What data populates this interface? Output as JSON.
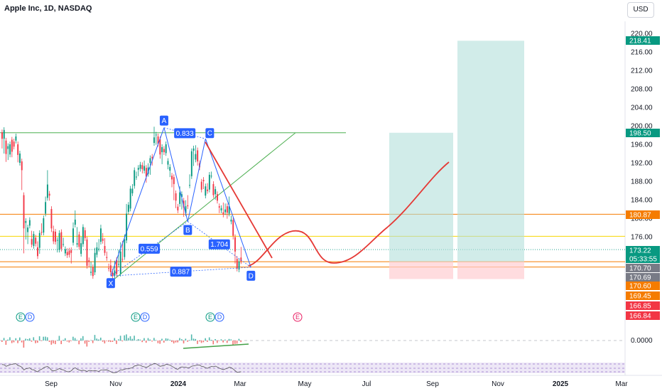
{
  "header": {
    "title": "Apple Inc, 1D, NASDAQ",
    "currency": "USD"
  },
  "chart_data": {
    "type": "candlestick",
    "symbol": "Apple Inc",
    "interval": "1D",
    "exchange": "NASDAQ",
    "ylim": [
      163.0,
      222.5
    ],
    "price_ticks": [
      "220.00",
      "216.00",
      "212.00",
      "208.00",
      "204.00",
      "200.00",
      "196.00",
      "192.00",
      "188.00",
      "184.00",
      "180.00",
      "176.00"
    ],
    "time_axis": [
      "Sep",
      "Nov",
      "2024",
      "Mar",
      "May",
      "Jul",
      "Sep",
      "Nov",
      "2025",
      "Mar"
    ],
    "candles": [
      [
        198.6,
        197.2,
        195.7
      ],
      [
        197.2,
        199.1,
        194.6
      ],
      [
        196.8,
        193.9,
        192.8
      ],
      [
        195.0,
        195.6,
        193.2
      ],
      [
        193.8,
        196.0,
        195.6
      ],
      [
        197.0,
        194.4,
        193.8
      ],
      [
        196.6,
        195.5,
        195.8
      ],
      [
        196.8,
        197.7,
        197.5
      ],
      [
        196.0,
        193.7,
        192.7
      ],
      [
        192.0,
        194.0,
        193.0
      ],
      [
        192.3,
        190.4,
        186.7
      ],
      [
        185.0,
        177.8,
        173.0
      ],
      [
        179.0,
        179.4,
        176.0
      ],
      [
        177.0,
        178.0,
        175.0
      ],
      [
        178.4,
        179.6,
        178.8
      ],
      [
        175.5,
        174.3,
        176.7
      ],
      [
        174.0,
        176.6,
        176.1
      ],
      [
        175.8,
        174.5,
        175.3
      ],
      [
        173.7,
        171.8,
        174.4
      ],
      [
        173.6,
        176.8,
        172.9
      ],
      [
        177.0,
        176.9,
        178.3
      ],
      [
        176.9,
        180.0,
        178.9
      ],
      [
        181.0,
        183.5,
        184.1
      ],
      [
        184.4,
        187.3,
        189.8
      ],
      [
        185.3,
        184.9,
        184.4
      ],
      [
        182.0,
        177.8,
        177.6
      ],
      [
        177.2,
        175.0,
        177.8
      ],
      [
        177.1,
        174.9,
        175.6
      ],
      [
        175.2,
        175.3,
        173.2
      ],
      [
        173.2,
        176.8,
        174.3
      ],
      [
        177.0,
        173.4,
        174.4
      ],
      [
        174.4,
        174.4,
        175.2
      ],
      [
        172.4,
        173.3,
        172.6
      ],
      [
        172.7,
        172.0,
        172.9
      ],
      [
        173.0,
        172.1,
        172.9
      ],
      [
        173.1,
        172.5,
        170.8
      ],
      [
        174.7,
        177.8,
        178.5
      ],
      [
        178.6,
        179.7,
        181.1
      ],
      [
        174.3,
        174.6,
        177.5
      ],
      [
        176.5,
        173.8,
        173.9
      ],
      [
        172.3,
        174.6,
        175.4
      ],
      [
        174.4,
        178.1,
        177.2
      ],
      [
        177.4,
        175.7,
        177.2
      ],
      [
        175.4,
        169.7,
        171.9
      ],
      [
        170.9,
        170.6,
        170.0
      ],
      [
        168.2,
        168.4,
        170.0
      ],
      [
        169.4,
        167.5,
        169.2
      ],
      [
        168.3,
        172.5,
        173.0
      ],
      [
        172.1,
        173.7,
        174.2
      ],
      [
        173.4,
        173.4,
        174.9
      ],
      [
        174.9,
        177.8,
        178.0
      ],
      [
        175.6,
        175.1,
        176.2
      ],
      [
        174.0,
        172.5,
        175.1
      ],
      [
        171.6,
        171.4,
        172.2
      ],
      [
        169.2,
        169.1,
        169.6
      ],
      [
        169.8,
        168.3,
        170.5
      ],
      [
        168.2,
        167.5,
        168.5
      ],
      [
        167.6,
        168.7,
        170.2
      ],
      [
        171.0,
        167.9,
        168.2
      ],
      [
        170.0,
        170.1,
        172.6
      ],
      [
        168.0,
        172.8,
        174.2
      ],
      [
        171.2,
        171.1,
        174.5
      ],
      [
        171.6,
        175.4,
        175.9
      ],
      [
        175.2,
        181.0,
        182.5
      ],
      [
        181.4,
        182.9,
        182.6
      ],
      [
        182.1,
        186.4,
        184.1
      ],
      [
        185.4,
        186.4,
        186.8
      ],
      [
        187.0,
        190.4,
        190.4
      ],
      [
        188.9,
        189.0,
        189.5
      ],
      [
        190.5,
        190.9,
        189.7
      ],
      [
        190.7,
        191.6,
        191.2
      ],
      [
        191.5,
        190.6,
        190.3
      ],
      [
        190.3,
        191.3,
        191.9
      ],
      [
        190.9,
        189.0,
        188.3
      ],
      [
        189.6,
        191.0,
        191.3
      ],
      [
        192.0,
        193.0,
        190.0
      ],
      [
        193.3,
        193.0,
        192.0
      ],
      [
        196.3,
        197.5,
        199.2
      ],
      [
        198.0,
        198.1,
        196.5
      ],
      [
        197.7,
        196.1,
        196.1
      ],
      [
        197.1,
        193.8,
        193.5
      ],
      [
        194.3,
        195.4,
        192.3
      ],
      [
        195.0,
        194.3,
        194.4
      ],
      [
        194.1,
        196.0,
        195.4
      ],
      [
        191.6,
        192.4,
        191.2
      ],
      [
        190.3,
        191.1,
        189.5
      ],
      [
        189.2,
        188.4,
        187.3
      ],
      [
        188.9,
        187.4,
        184.5
      ],
      [
        185.4,
        183.8,
        182.8
      ],
      [
        182.5,
        181.7,
        181.8
      ],
      [
        183.1,
        185.6,
        186.3
      ],
      [
        184.6,
        185.2,
        182.5
      ],
      [
        183.8,
        182.3,
        180.9
      ],
      [
        181.1,
        182.6,
        183.3
      ],
      [
        182.8,
        182.6,
        184.4
      ],
      [
        187.1,
        187.2,
        188.9
      ],
      [
        189.1,
        194.5,
        193.8
      ],
      [
        194.6,
        195.1,
        191.9
      ],
      [
        192.7,
        193.9,
        195.2
      ],
      [
        194.7,
        192.3,
        192.0
      ],
      [
        191.9,
        191.0,
        191.4
      ],
      [
        187.9,
        186.2,
        187.6
      ],
      [
        188.3,
        188.0,
        186.9
      ],
      [
        184.9,
        186.9,
        185.3
      ],
      [
        186.2,
        185.9,
        187.0
      ],
      [
        186.2,
        189.4,
        189.4
      ],
      [
        189.2,
        189.2,
        189.5
      ],
      [
        187.4,
        185.0,
        187.3
      ],
      [
        185.2,
        186.3,
        184.6
      ],
      [
        185.2,
        183.8,
        183.8
      ],
      [
        182.6,
        182.3,
        181.7
      ],
      [
        181.7,
        182.2,
        181.9
      ],
      [
        181.3,
        180.8,
        182.8
      ],
      [
        181.3,
        181.9,
        182.6
      ],
      [
        182.6,
        181.2,
        180.5
      ],
      [
        181.0,
        182.6,
        184.1
      ],
      [
        179.3,
        179.7,
        180.0
      ],
      [
        179.6,
        176.2,
        176.0
      ],
      [
        175.9,
        172.8,
        170.8
      ],
      [
        171.2,
        169.1,
        170.1
      ],
      [
        168.9,
        170.6,
        169.8
      ],
      [
        171.5,
        170.7,
        173.2
      ]
    ],
    "harmonic_pattern": {
      "points": [
        {
          "label": "X",
          "t": 55,
          "price": 167.5
        },
        {
          "label": "A",
          "t": 82,
          "price": 199.6
        },
        {
          "label": "B",
          "t": 94,
          "price": 179.3
        },
        {
          "label": "C",
          "t": 103,
          "price": 197.2
        },
        {
          "label": "D",
          "t": 126,
          "price": 169.4
        }
      ],
      "ratios": [
        "0.833",
        "0.559",
        "1.704",
        "0.887"
      ]
    },
    "price_tags": [
      {
        "value": "218.41",
        "color": "#089981"
      },
      {
        "value": "198.50",
        "color": "#089981"
      },
      {
        "value": "180.87",
        "color": "#f57c00"
      },
      {
        "value": "173.22",
        "color": "#089981",
        "sub": "05:33:55"
      },
      {
        "value": "170.70",
        "color": "#787b86"
      },
      {
        "value": "170.69",
        "color": "#787b86"
      },
      {
        "value": "170.60",
        "color": "#f57c00"
      },
      {
        "value": "169.45",
        "color": "#f57c00"
      },
      {
        "value": "166.85",
        "color": "#f23645"
      },
      {
        "value": "166.84",
        "color": "#f23645"
      }
    ],
    "horizontal_levels": [
      {
        "price": 180.87,
        "color": "#f57c00"
      },
      {
        "price": 176.1,
        "color": "#f7d600"
      },
      {
        "price": 170.6,
        "color": "#f57c00"
      },
      {
        "price": 169.45,
        "color": "#f57c00"
      }
    ],
    "events": [
      "E",
      "D",
      "E",
      "D",
      "E",
      "D",
      "E"
    ],
    "indicator_value": "0.0000"
  }
}
